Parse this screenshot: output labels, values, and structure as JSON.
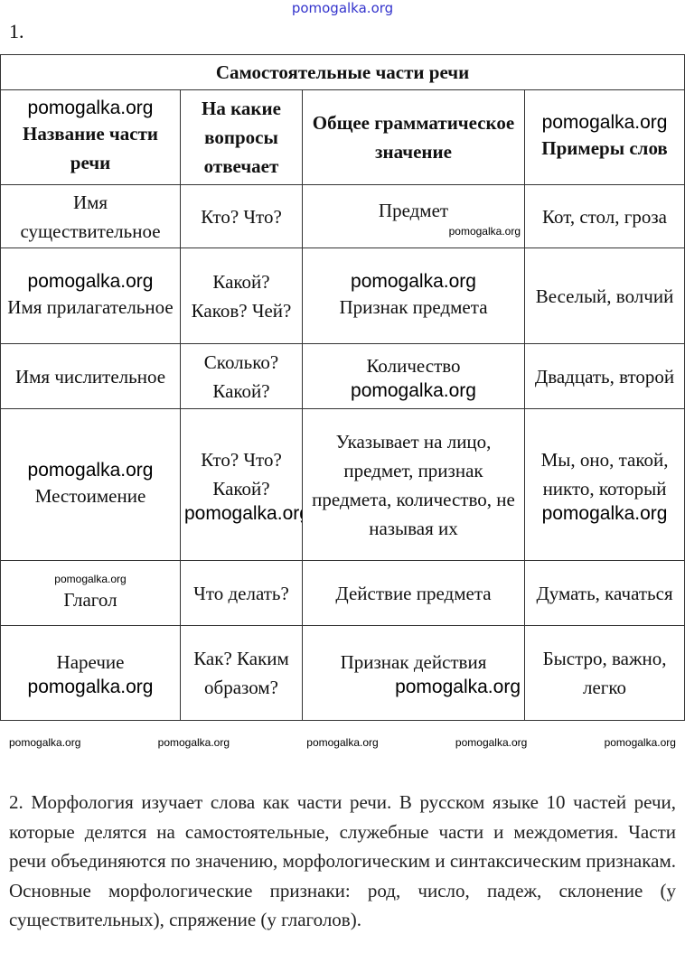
{
  "watermark": "pomogalka.org",
  "task1": {
    "number": "1.",
    "table": {
      "title": "Самостоятельные части речи",
      "headers": [
        "Название части речи",
        "На какие вопросы отвечает",
        "Общее грамматическое значение",
        "Примеры слов"
      ],
      "rows": [
        [
          "Имя существительное",
          "Кто? Что?",
          "Предмет",
          "Кот, стол, гроза"
        ],
        [
          "Имя прилагательное",
          "Какой? Каков? Чей?",
          "Признак предмета",
          "Веселый, волчий"
        ],
        [
          "Имя числительное",
          "Сколько? Какой?",
          "Количество",
          "Двадцать, второй"
        ],
        [
          "Местоимение",
          "Кто? Что? Какой?",
          "Указывает на лицо, предмет, признак предмета, количество, не называя их",
          "Мы, оно, такой, никто, который"
        ],
        [
          "Глагол",
          "Что делать?",
          "Действие предмета",
          "Думать, качаться"
        ],
        [
          "Наречие",
          "Как? Каким образом?",
          "Признак действия",
          "Быстро, важно, легко"
        ]
      ]
    }
  },
  "task2": {
    "text": "2. Морфология изучает слова как части речи. В русском языке 10 частей речи, которые делятся на самостоятельные, служебные части и междометия. Части речи объединяются по значению, морфологическим и синтаксическим признакам. Основные морфологические признаки: род, число, падеж, склонение (у существительных), спряжение (у глаголов)."
  }
}
